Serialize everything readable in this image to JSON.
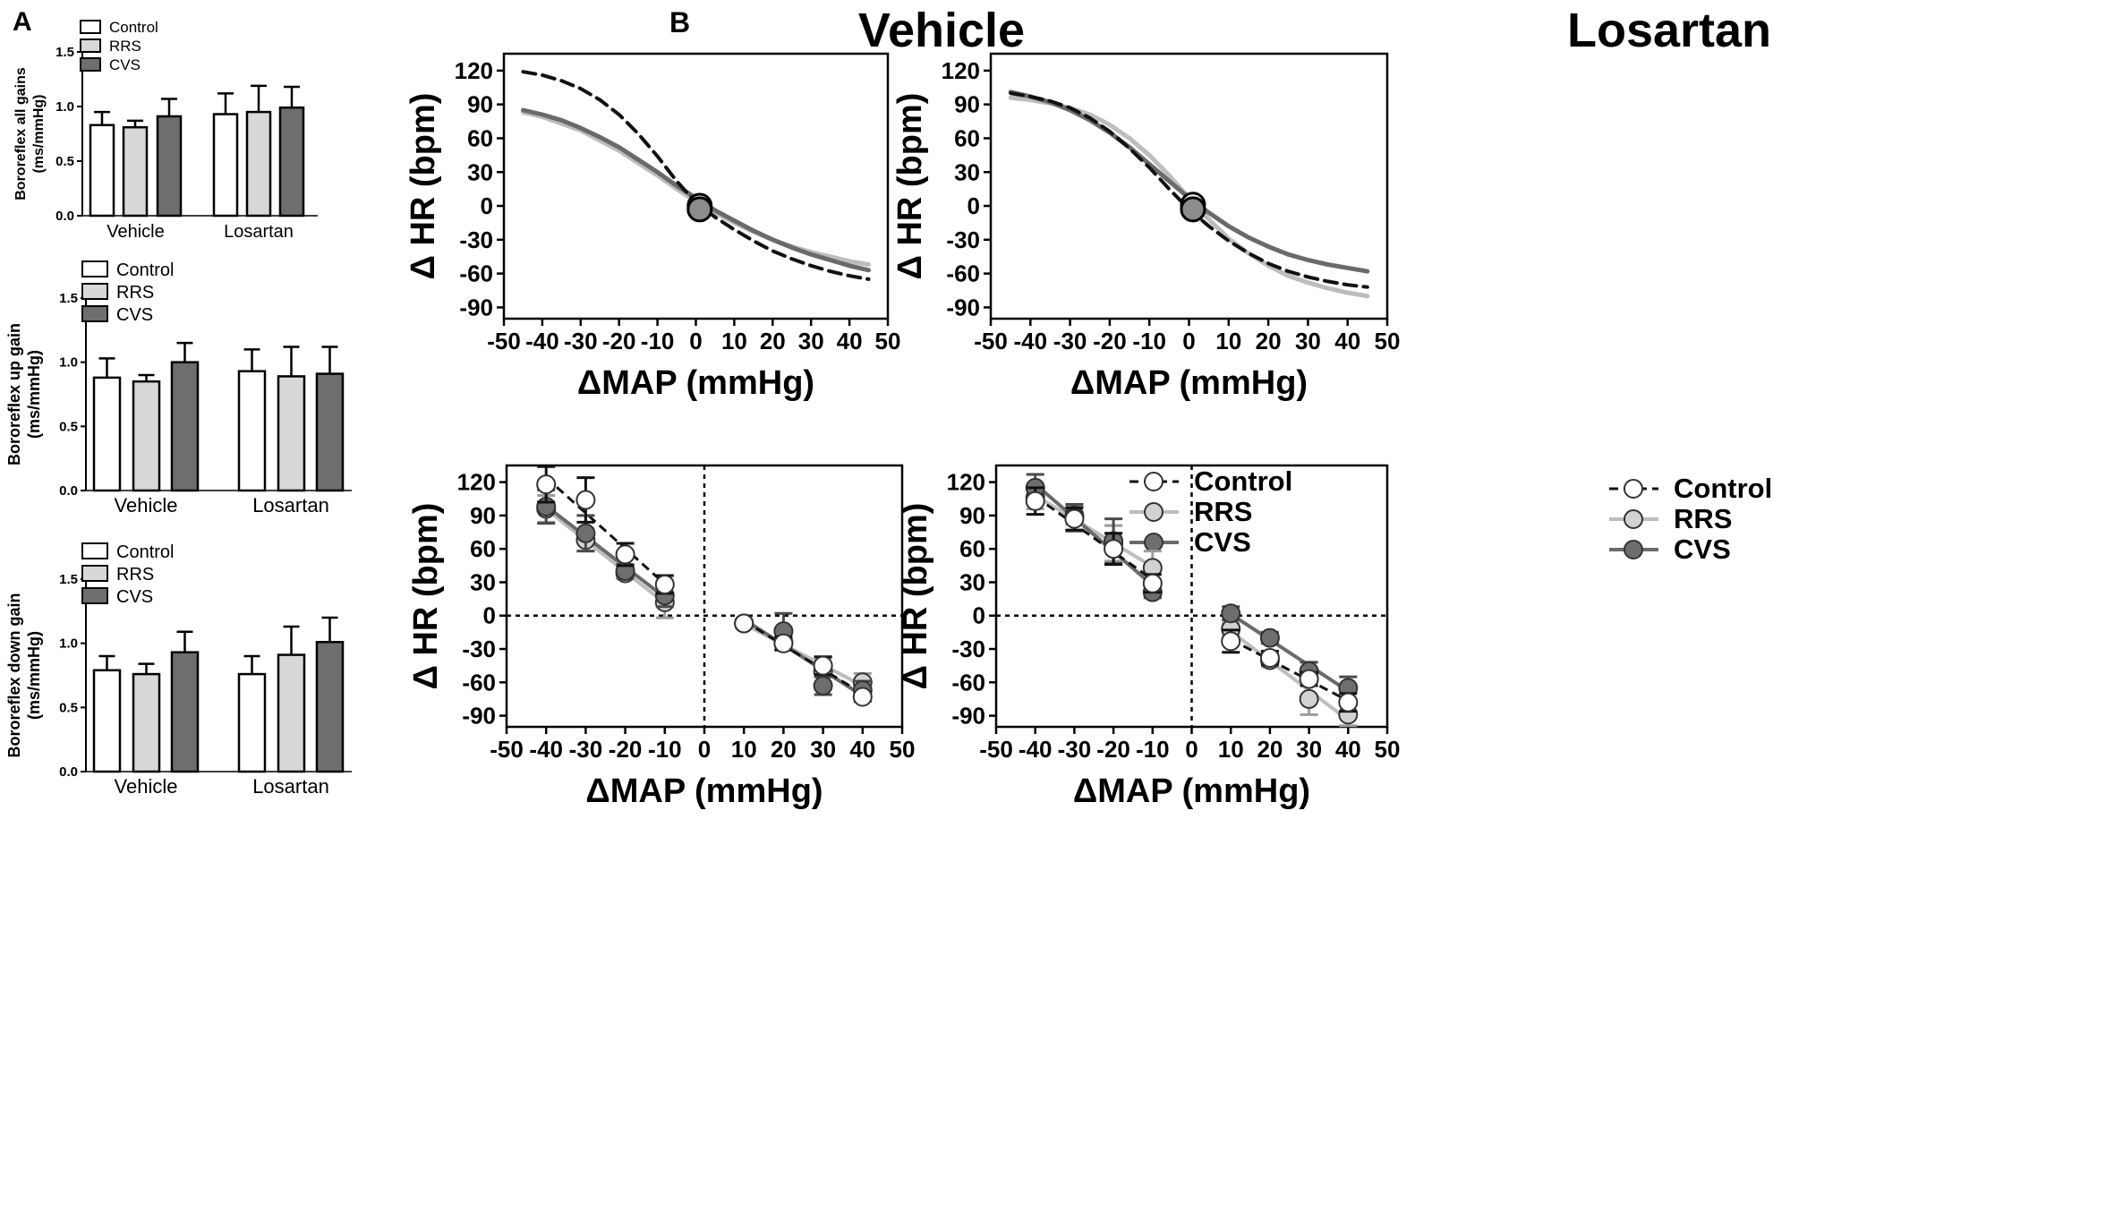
{
  "panel_labels": {
    "a": "A",
    "b": "B"
  },
  "colors": {
    "control": "#ffffff",
    "rrs": "#d8d8d8",
    "cvs": "#6e6e6e",
    "control_line": "#111111",
    "rrs_line": "#bdbdbd",
    "cvs_line": "#6a6a6a",
    "axis": "#000000"
  },
  "legend_labels": [
    "Control",
    "RRS",
    "CVS"
  ],
  "chart_data": [
    {
      "type": "bar",
      "id": "a1",
      "title": "",
      "ylabel": "Bororeflex all gains (ms/mmHg)",
      "ylabel_lines": [
        "Bororeflex all gains",
        "(ms/mmHg)"
      ],
      "ylim": [
        0,
        1.5
      ],
      "yticks": [
        "0.0",
        "0.5",
        "1.0",
        "1.5"
      ],
      "categories": [
        "Vehicle",
        "Losartan"
      ],
      "series": [
        {
          "name": "Control",
          "values": [
            0.83,
            0.93
          ],
          "errors": [
            0.12,
            0.19
          ]
        },
        {
          "name": "RRS",
          "values": [
            0.81,
            0.95
          ],
          "errors": [
            0.06,
            0.24
          ]
        },
        {
          "name": "CVS",
          "values": [
            0.91,
            0.99
          ],
          "errors": [
            0.16,
            0.19
          ]
        }
      ]
    },
    {
      "type": "bar",
      "id": "a2",
      "title": "",
      "ylabel": "Bororeflex up gain (ms/mmHg)",
      "ylabel_lines": [
        "Bororeflex up gain",
        "(ms/mmHg)"
      ],
      "ylim": [
        0,
        1.5
      ],
      "yticks": [
        "0.0",
        "0.5",
        "1.0",
        "1.5"
      ],
      "categories": [
        "Vehicle",
        "Losartan"
      ],
      "series": [
        {
          "name": "Control",
          "values": [
            0.88,
            0.93
          ],
          "errors": [
            0.15,
            0.17
          ]
        },
        {
          "name": "RRS",
          "values": [
            0.85,
            0.89
          ],
          "errors": [
            0.05,
            0.23
          ]
        },
        {
          "name": "CVS",
          "values": [
            1.0,
            0.91
          ],
          "errors": [
            0.15,
            0.21
          ]
        }
      ]
    },
    {
      "type": "bar",
      "id": "a3",
      "title": "",
      "ylabel": "Bororeflex down gain (ms/mmHg)",
      "ylabel_lines": [
        "Bororeflex down gain",
        "(ms/mmHg)"
      ],
      "ylim": [
        0,
        1.5
      ],
      "yticks": [
        "0.0",
        "0.5",
        "1.0",
        "1.5"
      ],
      "categories": [
        "Vehicle",
        "Losartan"
      ],
      "series": [
        {
          "name": "Control",
          "values": [
            0.79,
            0.76
          ],
          "errors": [
            0.11,
            0.14
          ]
        },
        {
          "name": "RRS",
          "values": [
            0.76,
            0.91
          ],
          "errors": [
            0.08,
            0.22
          ]
        },
        {
          "name": "CVS",
          "values": [
            0.93,
            1.01
          ],
          "errors": [
            0.16,
            0.19
          ]
        }
      ]
    },
    {
      "type": "line",
      "id": "b1",
      "title": "Vehicle",
      "xlabel": "ΔMAP (mmHg)",
      "ylabel": "Δ HR (bpm)",
      "xlim": [
        -50,
        50
      ],
      "ylim": [
        -100,
        135
      ],
      "xticks": [
        "-50",
        "-40",
        "-30",
        "-20",
        "-10",
        "0",
        "10",
        "20",
        "30",
        "40",
        "50"
      ],
      "yticks": [
        "120",
        "90",
        "60",
        "30",
        "0",
        "-30",
        "-60",
        "-90"
      ],
      "series": [
        {
          "name": "Control",
          "style": "dashed",
          "points": [
            [
              -45,
              119
            ],
            [
              -40,
              116
            ],
            [
              -35,
              111
            ],
            [
              -30,
              104
            ],
            [
              -25,
              94
            ],
            [
              -20,
              81
            ],
            [
              -15,
              64
            ],
            [
              -10,
              44
            ],
            [
              -5,
              22
            ],
            [
              0,
              3
            ],
            [
              5,
              -10
            ],
            [
              10,
              -21
            ],
            [
              15,
              -31
            ],
            [
              20,
              -40
            ],
            [
              25,
              -47
            ],
            [
              30,
              -53
            ],
            [
              35,
              -58
            ],
            [
              40,
              -62
            ],
            [
              45,
              -65
            ]
          ]
        },
        {
          "name": "RRS",
          "style": "solid",
          "points": [
            [
              -45,
              83
            ],
            [
              -40,
              79
            ],
            [
              -35,
              73
            ],
            [
              -30,
              67
            ],
            [
              -25,
              58
            ],
            [
              -20,
              49
            ],
            [
              -15,
              38
            ],
            [
              -10,
              27
            ],
            [
              -5,
              15
            ],
            [
              0,
              4
            ],
            [
              5,
              -6
            ],
            [
              10,
              -15
            ],
            [
              15,
              -23
            ],
            [
              20,
              -30
            ],
            [
              25,
              -36
            ],
            [
              30,
              -41
            ],
            [
              35,
              -45
            ],
            [
              40,
              -49
            ],
            [
              45,
              -52
            ]
          ]
        },
        {
          "name": "CVS",
          "style": "solid",
          "points": [
            [
              -45,
              85
            ],
            [
              -40,
              81
            ],
            [
              -35,
              76
            ],
            [
              -30,
              69
            ],
            [
              -25,
              61
            ],
            [
              -20,
              52
            ],
            [
              -15,
              41
            ],
            [
              -10,
              30
            ],
            [
              -5,
              18
            ],
            [
              0,
              7
            ],
            [
              5,
              -4
            ],
            [
              10,
              -13
            ],
            [
              15,
              -22
            ],
            [
              20,
              -30
            ],
            [
              25,
              -37
            ],
            [
              30,
              -43
            ],
            [
              35,
              -48
            ],
            [
              40,
              -53
            ],
            [
              45,
              -57
            ]
          ]
        }
      ],
      "markers": [
        {
          "name": "Control",
          "x": 1,
          "y": 0
        },
        {
          "name": "CVS",
          "x": 1,
          "y": -3
        }
      ]
    },
    {
      "type": "line",
      "id": "b2",
      "title": "Losartan",
      "xlabel": "ΔMAP (mmHg)",
      "ylabel": "Δ HR (bpm)",
      "xlim": [
        -50,
        50
      ],
      "ylim": [
        -100,
        135
      ],
      "xticks": [
        "-50",
        "-40",
        "-30",
        "-20",
        "-10",
        "0",
        "10",
        "20",
        "30",
        "40",
        "50"
      ],
      "yticks": [
        "120",
        "90",
        "60",
        "30",
        "0",
        "-30",
        "-60",
        "-90"
      ],
      "series": [
        {
          "name": "Control",
          "style": "dashed",
          "points": [
            [
              -45,
              100
            ],
            [
              -40,
              97
            ],
            [
              -35,
              93
            ],
            [
              -30,
              87
            ],
            [
              -25,
              78
            ],
            [
              -20,
              66
            ],
            [
              -15,
              51
            ],
            [
              -10,
              34
            ],
            [
              -5,
              15
            ],
            [
              0,
              -3
            ],
            [
              5,
              -18
            ],
            [
              10,
              -31
            ],
            [
              15,
              -42
            ],
            [
              20,
              -51
            ],
            [
              25,
              -58
            ],
            [
              30,
              -63
            ],
            [
              35,
              -67
            ],
            [
              40,
              -70
            ],
            [
              45,
              -72
            ]
          ]
        },
        {
          "name": "RRS",
          "style": "solid",
          "points": [
            [
              -45,
              96
            ],
            [
              -40,
              94
            ],
            [
              -35,
              91
            ],
            [
              -30,
              87
            ],
            [
              -25,
              81
            ],
            [
              -20,
              72
            ],
            [
              -15,
              60
            ],
            [
              -10,
              45
            ],
            [
              -5,
              27
            ],
            [
              0,
              7
            ],
            [
              5,
              -12
            ],
            [
              10,
              -29
            ],
            [
              15,
              -42
            ],
            [
              20,
              -53
            ],
            [
              25,
              -62
            ],
            [
              30,
              -68
            ],
            [
              35,
              -73
            ],
            [
              40,
              -77
            ],
            [
              45,
              -80
            ]
          ]
        },
        {
          "name": "CVS",
          "style": "solid",
          "points": [
            [
              -45,
              101
            ],
            [
              -40,
              97
            ],
            [
              -35,
              92
            ],
            [
              -30,
              85
            ],
            [
              -25,
              76
            ],
            [
              -20,
              65
            ],
            [
              -15,
              52
            ],
            [
              -10,
              37
            ],
            [
              -5,
              22
            ],
            [
              0,
              7
            ],
            [
              5,
              -6
            ],
            [
              10,
              -18
            ],
            [
              15,
              -28
            ],
            [
              20,
              -36
            ],
            [
              25,
              -43
            ],
            [
              30,
              -48
            ],
            [
              35,
              -52
            ],
            [
              40,
              -55
            ],
            [
              45,
              -58
            ]
          ]
        }
      ],
      "markers": [
        {
          "name": "Control",
          "x": 1,
          "y": 1
        },
        {
          "name": "CVS",
          "x": 1,
          "y": -3
        }
      ]
    },
    {
      "type": "scatter",
      "id": "b3",
      "title": "",
      "xlabel": "ΔMAP (mmHg)",
      "ylabel": "Δ HR (bpm)",
      "xlim": [
        -50,
        50
      ],
      "ylim": [
        -100,
        135
      ],
      "xticks": [
        "-50",
        "-40",
        "-30",
        "-20",
        "-10",
        "0",
        "10",
        "20",
        "30",
        "40",
        "50"
      ],
      "yticks": [
        "120",
        "90",
        "60",
        "30",
        "0",
        "-30",
        "-60",
        "-90"
      ],
      "legend": "top-right",
      "series": [
        {
          "name": "Control",
          "x": [
            -40,
            -30,
            -20,
            -10,
            10,
            20,
            30,
            40
          ],
          "y": [
            118,
            104,
            55,
            28,
            -7,
            -25,
            -45,
            -73
          ],
          "err": [
            16,
            20,
            10,
            8,
            3,
            6,
            8,
            4
          ]
        },
        {
          "name": "RRS",
          "x": [
            -40,
            -30,
            -20,
            -10,
            10,
            20,
            30,
            40
          ],
          "y": [
            96,
            68,
            38,
            12,
            -7,
            -24,
            -50,
            -60
          ],
          "err": [
            12,
            10,
            5,
            14,
            3,
            6,
            12,
            8
          ]
        },
        {
          "name": "CVS",
          "x": [
            -40,
            -30,
            -20,
            -10,
            10,
            20,
            30,
            40
          ],
          "y": [
            98,
            74,
            40,
            18,
            -7,
            -14,
            -63,
            -67
          ],
          "err": [
            15,
            16,
            6,
            10,
            3,
            16,
            8,
            8
          ]
        }
      ]
    },
    {
      "type": "scatter",
      "id": "b4",
      "title": "",
      "xlabel": "ΔMAP (mmHg)",
      "ylabel": "Δ HR (bpm)",
      "xlim": [
        -50,
        50
      ],
      "ylim": [
        -100,
        135
      ],
      "xticks": [
        "-50",
        "-40",
        "-30",
        "-20",
        "-10",
        "0",
        "10",
        "20",
        "30",
        "40",
        "50"
      ],
      "yticks": [
        "120",
        "90",
        "60",
        "30",
        "0",
        "-30",
        "-60",
        "-90"
      ],
      "legend": "top-right",
      "series": [
        {
          "name": "Control",
          "x": [
            -40,
            -30,
            -20,
            -10,
            10,
            20,
            30,
            40
          ],
          "y": [
            103,
            87,
            60,
            29,
            -23,
            -38,
            -57,
            -78
          ],
          "err": [
            12,
            10,
            14,
            8,
            10,
            6,
            6,
            8
          ]
        },
        {
          "name": "RRS",
          "x": [
            -40,
            -30,
            -20,
            -10,
            10,
            20,
            30,
            40
          ],
          "y": [
            106,
            90,
            65,
            43,
            -12,
            -40,
            -75,
            -89
          ],
          "err": [
            10,
            8,
            16,
            15,
            5,
            6,
            14,
            10
          ]
        },
        {
          "name": "CVS",
          "x": [
            -40,
            -30,
            -20,
            -10,
            10,
            20,
            30,
            40
          ],
          "y": [
            115,
            88,
            67,
            21,
            2,
            -20,
            -50,
            -65
          ],
          "err": [
            12,
            12,
            20,
            5,
            6,
            5,
            8,
            10
          ]
        }
      ]
    }
  ]
}
